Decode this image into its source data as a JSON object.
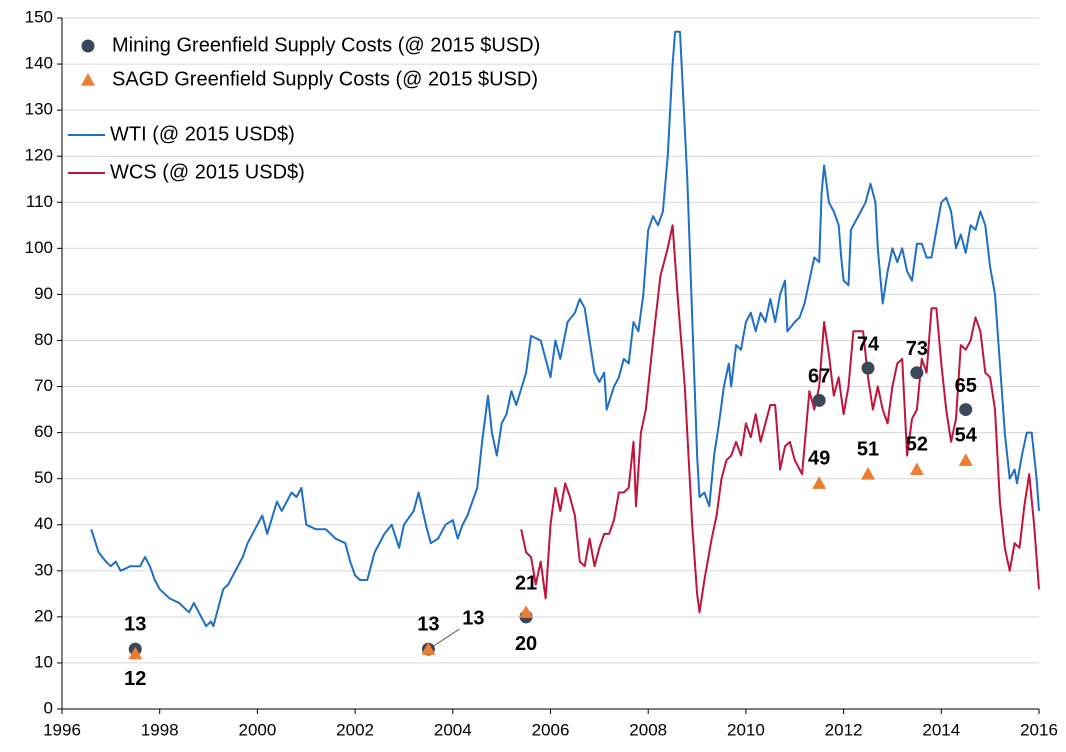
{
  "chart_data": {
    "type": "line",
    "xlim": [
      1996,
      2016
    ],
    "xticks": [
      1996,
      1998,
      2000,
      2002,
      2004,
      2006,
      2008,
      2010,
      2012,
      2014,
      2016
    ],
    "ylim": [
      0,
      150
    ],
    "yticks": [
      0,
      10,
      20,
      30,
      40,
      50,
      60,
      70,
      80,
      90,
      100,
      110,
      120,
      130,
      140,
      150
    ],
    "grid": true,
    "legend": "upper left",
    "series": [
      {
        "name": "Mining Greenfield Supply Costs (@ 2015 $USD)",
        "type": "scatter",
        "color": "#3c475a",
        "x": [
          1997.5,
          2003.5,
          2005.5,
          2011.5,
          2012.5,
          2013.5,
          2014.5
        ],
        "values": [
          13,
          13,
          20,
          67,
          74,
          73,
          65
        ]
      },
      {
        "name": "SAGD Greenfield Supply Costs (@ 2015 $USD)",
        "type": "scatter",
        "color": "#ed7d31",
        "x": [
          1997.5,
          2003.5,
          2005.5,
          2011.5,
          2012.5,
          2013.5,
          2014.5
        ],
        "values": [
          12,
          13,
          21,
          49,
          51,
          52,
          54
        ]
      },
      {
        "name": "WTI (@ 2015 USD$)",
        "type": "line",
        "color": "#1f6fc5",
        "x": [
          1996.6,
          1996.75,
          1996.9,
          1997.0,
          1997.1,
          1997.2,
          1997.4,
          1997.6,
          1997.7,
          1997.8,
          1997.9,
          1998.0,
          1998.2,
          1998.4,
          1998.5,
          1998.6,
          1998.7,
          1998.8,
          1998.95,
          1999.05,
          1999.1,
          1999.3,
          1999.4,
          1999.55,
          1999.7,
          1999.8,
          2000.0,
          2000.1,
          2000.2,
          2000.4,
          2000.5,
          2000.7,
          2000.8,
          2000.9,
          2001.0,
          2001.2,
          2001.4,
          2001.6,
          2001.8,
          2001.9,
          2002.0,
          2002.1,
          2002.25,
          2002.4,
          2002.5,
          2002.6,
          2002.75,
          2002.9,
          2003.0,
          2003.2,
          2003.3,
          2003.45,
          2003.55,
          2003.7,
          2003.85,
          2004.0,
          2004.1,
          2004.2,
          2004.3,
          2004.4,
          2004.5,
          2004.6,
          2004.72,
          2004.8,
          2004.9,
          2005.0,
          2005.1,
          2005.2,
          2005.3,
          2005.5,
          2005.6,
          2005.8,
          2006.0,
          2006.1,
          2006.2,
          2006.35,
          2006.5,
          2006.6,
          2006.7,
          2006.8,
          2006.9,
          2007.0,
          2007.1,
          2007.15,
          2007.3,
          2007.4,
          2007.5,
          2007.6,
          2007.7,
          2007.8,
          2007.9,
          2008.0,
          2008.1,
          2008.2,
          2008.3,
          2008.4,
          2008.5,
          2008.55,
          2008.65,
          2008.8,
          2008.9,
          2009.0,
          2009.05,
          2009.15,
          2009.25,
          2009.35,
          2009.45,
          2009.55,
          2009.65,
          2009.7,
          2009.8,
          2009.9,
          2010.0,
          2010.1,
          2010.2,
          2010.3,
          2010.4,
          2010.5,
          2010.6,
          2010.7,
          2010.8,
          2010.85,
          2011.0,
          2011.1,
          2011.2,
          2011.3,
          2011.4,
          2011.5,
          2011.55,
          2011.6,
          2011.7,
          2011.8,
          2011.9,
          2011.95,
          2012.0,
          2012.1,
          2012.15,
          2012.3,
          2012.45,
          2012.55,
          2012.65,
          2012.7,
          2012.8,
          2012.9,
          2013.0,
          2013.1,
          2013.2,
          2013.3,
          2013.4,
          2013.5,
          2013.6,
          2013.7,
          2013.8,
          2013.9,
          2014.0,
          2014.1,
          2014.2,
          2014.3,
          2014.4,
          2014.5,
          2014.6,
          2014.7,
          2014.8,
          2014.9,
          2015.0,
          2015.1,
          2015.2,
          2015.3,
          2015.4,
          2015.5,
          2015.55,
          2015.65,
          2015.75,
          2015.85,
          2015.95,
          2016.0
        ],
        "values": [
          39,
          34,
          32,
          31,
          32,
          30,
          31,
          31,
          33,
          31,
          28,
          26,
          24,
          23,
          22,
          21,
          23,
          21,
          18,
          19,
          18,
          26,
          27,
          30,
          33,
          36,
          40,
          42,
          38,
          45,
          43,
          47,
          46,
          48,
          40,
          39,
          39,
          37,
          36,
          32,
          29,
          28,
          28,
          34,
          36,
          38,
          40,
          35,
          40,
          43,
          47,
          40,
          36,
          37,
          40,
          41,
          37,
          40,
          42,
          45,
          48,
          58,
          68,
          60,
          55,
          62,
          64,
          69,
          66,
          73,
          81,
          80,
          72,
          80,
          76,
          84,
          86,
          89,
          87,
          80,
          73,
          71,
          73,
          65,
          70,
          72,
          76,
          75,
          84,
          82,
          90,
          104,
          107,
          105,
          108,
          120,
          140,
          147,
          147,
          115,
          85,
          55,
          46,
          47,
          44,
          55,
          62,
          70,
          75,
          70,
          79,
          78,
          84,
          86,
          82,
          86,
          84,
          89,
          84,
          90,
          93,
          82,
          84,
          85,
          88,
          93,
          98,
          97,
          112,
          118,
          110,
          108,
          105,
          98,
          93,
          92,
          104,
          107,
          110,
          114,
          110,
          100,
          88,
          95,
          100,
          97,
          100,
          95,
          93,
          101,
          101,
          98,
          98,
          104,
          110,
          111,
          108,
          100,
          103,
          99,
          105,
          104,
          108,
          105,
          96,
          90,
          75,
          60,
          50,
          52,
          49,
          55,
          60,
          60,
          50,
          43
        ]
      },
      {
        "name": "WCS (@ 2015 USD$)",
        "type": "line",
        "color": "#c0143c",
        "x": [
          2005.4,
          2005.5,
          2005.6,
          2005.7,
          2005.8,
          2005.9,
          2006.0,
          2006.1,
          2006.2,
          2006.3,
          2006.4,
          2006.5,
          2006.6,
          2006.7,
          2006.8,
          2006.9,
          2007.0,
          2007.1,
          2007.2,
          2007.3,
          2007.4,
          2007.5,
          2007.6,
          2007.7,
          2007.75,
          2007.85,
          2007.95,
          2008.1,
          2008.25,
          2008.4,
          2008.5,
          2008.6,
          2008.75,
          2008.9,
          2009.0,
          2009.05,
          2009.15,
          2009.3,
          2009.4,
          2009.5,
          2009.6,
          2009.7,
          2009.8,
          2009.9,
          2010.0,
          2010.1,
          2010.2,
          2010.3,
          2010.4,
          2010.5,
          2010.6,
          2010.7,
          2010.8,
          2010.9,
          2011.0,
          2011.15,
          2011.3,
          2011.4,
          2011.5,
          2011.6,
          2011.7,
          2011.8,
          2011.9,
          2012.0,
          2012.1,
          2012.2,
          2012.4,
          2012.5,
          2012.6,
          2012.7,
          2012.8,
          2012.9,
          2013.0,
          2013.1,
          2013.2,
          2013.3,
          2013.4,
          2013.5,
          2013.6,
          2013.7,
          2013.8,
          2013.9,
          2014.0,
          2014.1,
          2014.2,
          2014.3,
          2014.4,
          2014.5,
          2014.6,
          2014.7,
          2014.8,
          2014.9,
          2015.0,
          2015.1,
          2015.2,
          2015.3,
          2015.4,
          2015.5,
          2015.6,
          2015.7,
          2015.8,
          2015.9,
          2016.0
        ],
        "values": [
          39,
          34,
          33,
          27,
          32,
          24,
          40,
          48,
          43,
          49,
          46,
          42,
          32,
          31,
          37,
          31,
          35,
          38,
          38,
          41,
          47,
          47,
          48,
          58,
          44,
          60,
          65,
          80,
          94,
          100,
          105,
          90,
          70,
          40,
          25,
          21,
          28,
          37,
          42,
          50,
          54,
          55,
          58,
          55,
          62,
          59,
          64,
          58,
          62,
          66,
          66,
          52,
          57,
          58,
          54,
          51,
          69,
          65,
          70,
          84,
          77,
          68,
          72,
          64,
          70,
          82,
          82,
          72,
          65,
          70,
          65,
          62,
          70,
          75,
          76,
          55,
          63,
          65,
          76,
          73,
          87,
          87,
          75,
          65,
          58,
          63,
          79,
          78,
          80,
          85,
          82,
          73,
          72,
          65,
          45,
          35,
          30,
          36,
          35,
          44,
          51,
          40,
          26
        ]
      }
    ]
  }
}
